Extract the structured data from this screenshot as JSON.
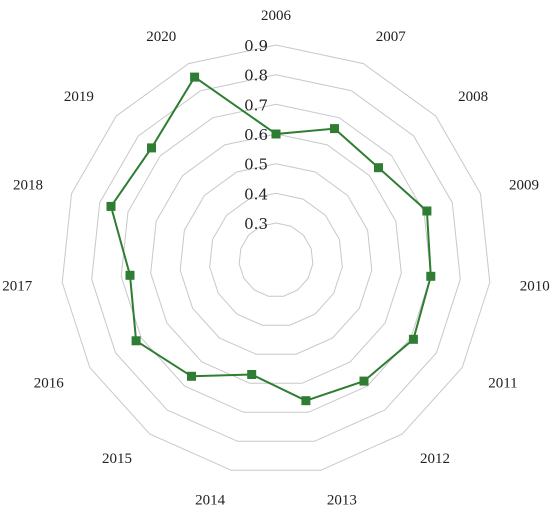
{
  "chart_data": {
    "type": "radar",
    "title": "",
    "categories": [
      "2006",
      "2007",
      "2008",
      "2009",
      "2010",
      "2011",
      "2012",
      "2013",
      "2014",
      "2015",
      "2016",
      "2017",
      "2018",
      "2019",
      "2020"
    ],
    "series": [
      {
        "name": "",
        "values": [
          0.6,
          0.66,
          0.64,
          0.71,
          0.7,
          0.71,
          0.68,
          0.66,
          0.57,
          0.66,
          0.72,
          0.67,
          0.76,
          0.74,
          0.85
        ]
      }
    ],
    "rlim": [
      0.3,
      0.9
    ],
    "ticks": [
      "0.3",
      "0.4",
      "0.5",
      "0.6",
      "0.7",
      "0.8",
      "0.9"
    ],
    "tick_values": [
      0.3,
      0.4,
      0.5,
      0.6,
      0.7,
      0.8,
      0.9
    ],
    "grid": true,
    "legend": "none",
    "colors": {
      "series": "#2e7d32",
      "grid": "#c8c8c8"
    }
  }
}
